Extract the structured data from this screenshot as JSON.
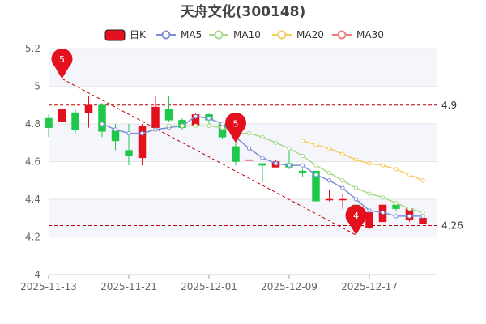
{
  "chart_data": {
    "type": "candlestick",
    "title": "天舟文化(300148)",
    "legend": [
      "日K",
      "MA5",
      "MA10",
      "MA20",
      "MA30"
    ],
    "colors": {
      "up": "#e3101d",
      "down": "#1ec84b",
      "ma5": "#7b8fd6",
      "ma10": "#a8d98a",
      "ma20": "#f5cc5e",
      "ma30": "#ee7e7e",
      "reference": "#c00000",
      "marker": "#e3101d"
    },
    "x_tick_labels": [
      "2025-11-13",
      "2025-11-21",
      "2025-12-01",
      "2025-12-09",
      "2025-12-17"
    ],
    "x_tick_indices": [
      0,
      6,
      12,
      18,
      24
    ],
    "ylim": [
      4,
      5.2
    ],
    "y_ticks": [
      "4",
      "4.2",
      "4.4",
      "4.6",
      "4.8",
      "5",
      "5.2"
    ],
    "candles": [
      {
        "o": 4.83,
        "c": 4.78,
        "h": 4.85,
        "l": 4.73
      },
      {
        "o": 4.81,
        "c": 4.88,
        "h": 5.04,
        "l": 4.81
      },
      {
        "o": 4.86,
        "c": 4.77,
        "h": 4.88,
        "l": 4.75
      },
      {
        "o": 4.86,
        "c": 4.9,
        "h": 4.95,
        "l": 4.78
      },
      {
        "o": 4.9,
        "c": 4.76,
        "h": 4.91,
        "l": 4.73
      },
      {
        "o": 4.77,
        "c": 4.71,
        "h": 4.8,
        "l": 4.66
      },
      {
        "o": 4.66,
        "c": 4.63,
        "h": 4.8,
        "l": 4.58
      },
      {
        "o": 4.62,
        "c": 4.79,
        "h": 4.8,
        "l": 4.58
      },
      {
        "o": 4.78,
        "c": 4.89,
        "h": 4.95,
        "l": 4.76
      },
      {
        "o": 4.88,
        "c": 4.82,
        "h": 4.95,
        "l": 4.81
      },
      {
        "o": 4.82,
        "c": 4.78,
        "h": 4.83,
        "l": 4.77
      },
      {
        "o": 4.79,
        "c": 4.85,
        "h": 4.86,
        "l": 4.79
      },
      {
        "o": 4.85,
        "c": 4.82,
        "h": 4.86,
        "l": 4.8
      },
      {
        "o": 4.8,
        "c": 4.73,
        "h": 4.81,
        "l": 4.72
      },
      {
        "o": 4.68,
        "c": 4.6,
        "h": 4.7,
        "l": 4.58
      },
      {
        "o": 4.61,
        "c": 4.61,
        "h": 4.67,
        "l": 4.58
      },
      {
        "o": 4.59,
        "c": 4.58,
        "h": 4.59,
        "l": 4.49
      },
      {
        "o": 4.57,
        "c": 4.6,
        "h": 4.61,
        "l": 4.57
      },
      {
        "o": 4.59,
        "c": 4.57,
        "h": 4.67,
        "l": 4.56
      },
      {
        "o": 4.55,
        "c": 4.54,
        "h": 4.56,
        "l": 4.52
      },
      {
        "o": 4.55,
        "c": 4.39,
        "h": 4.55,
        "l": 4.39
      },
      {
        "o": 4.4,
        "c": 4.4,
        "h": 4.45,
        "l": 4.39
      },
      {
        "o": 4.4,
        "c": 4.4,
        "h": 4.43,
        "l": 4.35
      },
      {
        "o": 4.37,
        "c": 4.26,
        "h": 4.38,
        "l": 4.21
      },
      {
        "o": 4.25,
        "c": 4.33,
        "h": 4.35,
        "l": 4.24
      },
      {
        "o": 4.28,
        "c": 4.37,
        "h": 4.37,
        "l": 4.28
      },
      {
        "o": 4.37,
        "c": 4.35,
        "h": 4.37,
        "l": 4.34
      },
      {
        "o": 4.29,
        "c": 4.35,
        "h": 4.35,
        "l": 4.28
      },
      {
        "o": 4.27,
        "c": 4.3,
        "h": 4.3,
        "l": 4.27
      }
    ],
    "ma5": [
      null,
      null,
      null,
      null,
      4.8,
      4.77,
      4.75,
      4.75,
      4.77,
      4.78,
      4.79,
      4.84,
      4.83,
      4.8,
      4.73,
      4.67,
      4.62,
      4.59,
      4.58,
      4.58,
      4.53,
      4.5,
      4.46,
      4.4,
      4.34,
      4.33,
      4.31,
      4.31,
      4.31
    ],
    "ma10": [
      null,
      null,
      null,
      null,
      null,
      null,
      null,
      null,
      null,
      4.79,
      4.79,
      4.79,
      4.79,
      4.78,
      4.75,
      4.75,
      4.73,
      4.7,
      4.67,
      4.63,
      4.58,
      4.54,
      4.5,
      4.46,
      4.43,
      4.41,
      4.38,
      4.35,
      4.33
    ],
    "ma20": [
      null,
      null,
      null,
      null,
      null,
      null,
      null,
      null,
      null,
      null,
      null,
      null,
      null,
      null,
      null,
      null,
      null,
      null,
      null,
      4.71,
      4.69,
      4.67,
      4.64,
      4.61,
      4.59,
      4.58,
      4.56,
      4.53,
      4.5
    ],
    "ma30": [],
    "reference_lines": [
      {
        "value": 4.9,
        "label": "4.9"
      },
      {
        "value": 4.26,
        "label": "4.26"
      }
    ],
    "markers": [
      {
        "label": "5",
        "index": 1,
        "value": 5.04
      },
      {
        "label": "5",
        "index": 14,
        "value": 4.7
      },
      {
        "label": "4",
        "index": 23,
        "value": 4.21
      }
    ],
    "trend_line": {
      "from": {
        "index": 1,
        "value": 5.04
      },
      "to": {
        "index": 23,
        "value": 4.21
      }
    }
  }
}
